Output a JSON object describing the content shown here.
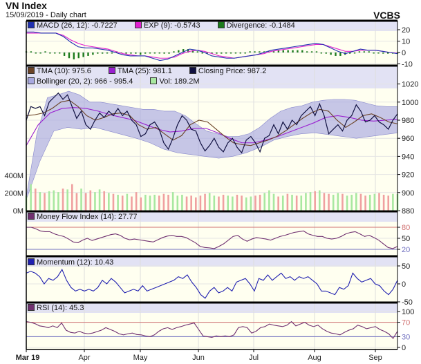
{
  "header": {
    "title": "VN Index",
    "subtitle": "15/09/2019 - Daily chart",
    "brand": "VCBS"
  },
  "colors": {
    "macd": "#2030b0",
    "exp": "#e020d0",
    "divergence": "#1c7a1c",
    "tma10": "#6b4326",
    "tma25": "#9a20d0",
    "close": "#101040",
    "bollinger": "#a8a8e0",
    "vol_up": "#a8e8a0",
    "vol_down": "#f0a0a0",
    "mfi": "#703070",
    "momentum": "#2020b0",
    "rsi": "#703070"
  },
  "chart_data": [
    {
      "type": "line",
      "name": "MACD",
      "legend": [
        {
          "label": "MACD (26, 12): -0.7227",
          "color": "#2030b0"
        },
        {
          "label": "EXP (9): -0.5743",
          "color": "#e020d0"
        },
        {
          "label": "Divergence: -0.1484",
          "color": "#1c7a1c"
        }
      ],
      "ylim": [
        -12,
        25
      ],
      "yticks": [
        "20",
        "10",
        "0",
        "-10"
      ],
      "ytick_values": [
        20,
        10,
        0,
        -10
      ],
      "macd": [
        18,
        18,
        17,
        17,
        17,
        14,
        9,
        5,
        4,
        4,
        3,
        2,
        0,
        -2,
        -3,
        -3,
        -3,
        -5,
        -7,
        -6,
        -3,
        0,
        3,
        2,
        0,
        -3,
        -4,
        -5,
        -5,
        -4,
        -3,
        -2,
        0,
        2,
        3,
        4,
        5,
        6,
        7,
        8,
        7,
        4,
        1,
        -1,
        1,
        3,
        2,
        2,
        1,
        0,
        -1
      ],
      "exp": [
        17,
        17,
        17,
        17,
        17,
        15,
        11,
        8,
        6,
        5,
        4,
        3,
        1,
        -1,
        -2,
        -3,
        -3,
        -4,
        -5,
        -5,
        -4,
        -1,
        1,
        2,
        1,
        -1,
        -3,
        -4,
        -5,
        -4,
        -3,
        -2,
        -1,
        1,
        2,
        3,
        4,
        5,
        6,
        7,
        7,
        5,
        3,
        1,
        1,
        2,
        2,
        2,
        1,
        0,
        -0.6
      ],
      "divergence": [
        1,
        1,
        0,
        0,
        1,
        0,
        0,
        0,
        -3,
        -5,
        -6,
        -5,
        -4,
        -3,
        -2,
        -1,
        -1,
        0,
        0,
        1,
        0,
        -1,
        -1,
        -1,
        -2,
        -1,
        0,
        0,
        0,
        -1,
        -1,
        1,
        2,
        3,
        3,
        2,
        1,
        0,
        -1,
        -1,
        -1,
        -1,
        0,
        0,
        0,
        0,
        0,
        1,
        1,
        1,
        1,
        1,
        1,
        2,
        2,
        2,
        2,
        2,
        2,
        1,
        1,
        1,
        0,
        -1,
        -2,
        -3,
        -3,
        -2,
        -1,
        0,
        1,
        1,
        1,
        0,
        0,
        -1,
        -1,
        -1,
        -1
      ]
    },
    {
      "type": "line",
      "name": "Price",
      "legend": [
        {
          "label": "TMA (10): 975.6",
          "color": "#6b4326"
        },
        {
          "label": "TMA (25): 981.1",
          "color": "#9a20d0"
        },
        {
          "label": "Closing Price: 987.2",
          "color": "#101040"
        },
        {
          "label": "Bollinger (20, 2): 966 - 995.4",
          "color": "#a8a8e0"
        },
        {
          "label": "Vol: 189.2M",
          "color": "#a8e8a0"
        }
      ],
      "ylim": [
        880,
        1030
      ],
      "yticks": [
        "1020",
        "1000",
        "980",
        "960",
        "940",
        "920",
        "900",
        "880"
      ],
      "ytick_values": [
        1020,
        1000,
        980,
        960,
        940,
        920,
        900,
        880
      ],
      "close": [
        980,
        995,
        993,
        995,
        985,
        1000,
        1005,
        1010,
        1003,
        1008,
        995,
        982,
        990,
        975,
        970,
        980,
        988,
        983,
        990,
        985,
        993,
        985,
        990,
        980,
        975,
        962,
        965,
        975,
        978,
        970,
        955,
        948,
        960,
        975,
        985,
        980,
        970,
        968,
        955,
        946,
        952,
        960,
        950,
        945,
        955,
        960,
        950,
        944,
        958,
        962,
        955,
        945,
        960,
        963,
        975,
        965,
        978,
        970,
        980,
        975,
        985,
        990,
        995,
        985,
        998,
        985,
        965,
        970,
        975,
        968,
        980,
        985,
        997,
        990,
        978,
        980,
        985,
        978,
        975,
        970,
        980,
        987
      ],
      "tma10": [
        985,
        986,
        988,
        993,
        1000,
        1002,
        995,
        985,
        980,
        983,
        987,
        988,
        985,
        975,
        970,
        972,
        965,
        958,
        963,
        975,
        980,
        978,
        970,
        962,
        955,
        953,
        952,
        955,
        958,
        962,
        968,
        975,
        982,
        988,
        992,
        990,
        980,
        972,
        978,
        985,
        987,
        983,
        978,
        976
      ],
      "tma25": [
        952,
        975,
        988,
        993,
        994,
        993,
        990,
        986,
        983,
        980,
        975,
        970,
        967,
        968,
        971,
        971,
        966,
        960,
        955,
        955,
        958,
        962,
        967,
        972,
        977,
        983,
        985,
        983,
        980,
        979,
        980,
        981
      ],
      "boll_upper": [
        895,
        965,
        1005,
        1008,
        1012,
        1008,
        1000,
        1000,
        998,
        996,
        994,
        992,
        992,
        990,
        990,
        985,
        976,
        968,
        965,
        962,
        962,
        965,
        972,
        982,
        990,
        994,
        996,
        1000,
        1002,
        1003,
        1003,
        1002,
        999,
        996,
        995,
        995
      ],
      "boll_lower": [
        892,
        935,
        968,
        972,
        970,
        972,
        968,
        964,
        960,
        955,
        948,
        944,
        942,
        940,
        938,
        940,
        944,
        950,
        958,
        962,
        965,
        966,
        964,
        962,
        960,
        962,
        964,
        966
      ],
      "volume_label_ticks": [
        "400M",
        "200M",
        "0M"
      ],
      "volume_tick_values": [
        400,
        200,
        0
      ],
      "volume_max": 600,
      "volume": [
        170,
        300,
        250,
        210,
        200,
        220,
        230,
        210,
        250,
        240,
        300,
        200,
        250,
        200,
        230,
        210,
        240,
        220,
        200,
        190,
        180,
        170,
        190,
        160,
        210,
        150,
        180,
        170,
        180,
        170,
        190,
        180,
        210,
        170,
        180,
        160,
        170,
        150,
        170,
        190,
        200,
        170,
        160,
        180,
        170,
        160,
        180,
        170,
        150,
        160,
        170,
        180,
        200,
        230,
        190,
        160,
        170,
        190,
        180,
        170,
        170,
        200,
        210,
        220,
        230,
        200,
        190,
        180,
        200,
        190,
        170,
        180,
        200,
        190,
        170,
        180,
        190,
        200,
        180,
        170,
        190,
        189
      ]
    },
    {
      "type": "line",
      "name": "Money Flow Index",
      "legend": [
        {
          "label": "Money Flow Index (14): 27.77",
          "color": "#703070"
        }
      ],
      "ylim": [
        0,
        100
      ],
      "yticks": [
        "80",
        "50",
        "20"
      ],
      "ytick_values": [
        80,
        50,
        20
      ],
      "values": [
        80,
        80,
        76,
        70,
        68,
        68,
        62,
        58,
        55,
        48,
        40,
        38,
        45,
        50,
        44,
        48,
        52,
        56,
        60,
        62,
        58,
        50,
        46,
        48,
        46,
        44,
        42,
        40,
        46,
        52,
        56,
        58,
        55,
        55,
        52,
        45,
        38,
        28,
        25,
        24,
        22,
        28,
        35,
        45,
        55,
        58,
        48,
        42,
        48,
        52,
        50,
        48,
        45,
        50,
        55,
        58,
        62,
        66,
        68,
        70,
        62,
        58,
        55,
        55,
        50,
        48,
        50,
        55,
        62,
        66,
        68,
        62,
        55,
        58,
        52,
        45,
        35,
        25,
        22,
        28
      ]
    },
    {
      "type": "line",
      "name": "Momentum",
      "legend": [
        {
          "label": "Momentum (12): 10.43",
          "color": "#2020b0"
        }
      ],
      "ylim": [
        -50,
        80
      ],
      "yticks": [
        "50",
        "0",
        "-50"
      ],
      "ytick_values": [
        50,
        0,
        -50
      ],
      "values": [
        30,
        35,
        30,
        20,
        0,
        15,
        10,
        20,
        40,
        10,
        -10,
        -20,
        -15,
        -20,
        -15,
        -20,
        -10,
        10,
        0,
        15,
        5,
        -10,
        -25,
        -20,
        -15,
        -20,
        -5,
        -20,
        -15,
        -10,
        -5,
        0,
        5,
        10,
        20,
        15,
        25,
        5,
        -10,
        -30,
        -40,
        -20,
        -10,
        -25,
        -20,
        -10,
        -20,
        5,
        10,
        15,
        0,
        -20,
        15,
        10,
        25,
        10,
        20,
        30,
        15,
        20,
        10,
        20,
        15,
        20,
        10,
        0,
        -20,
        -20,
        -25,
        -30,
        -10,
        -15,
        -5,
        30,
        15,
        5,
        10,
        15,
        0,
        -5,
        -20,
        -30,
        -15,
        10
      ]
    },
    {
      "type": "line",
      "name": "RSI",
      "legend": [
        {
          "label": "RSI (14): 45.3",
          "color": "#703070"
        }
      ],
      "ylim": [
        0,
        100
      ],
      "yticks": [
        "100",
        "70",
        "30",
        "0"
      ],
      "ytick_values": [
        100,
        70,
        30,
        0
      ],
      "values": [
        72,
        70,
        66,
        60,
        58,
        55,
        60,
        55,
        68,
        48,
        42,
        40,
        45,
        40,
        38,
        40,
        44,
        48,
        55,
        50,
        45,
        38,
        35,
        38,
        40,
        36,
        35,
        32,
        30,
        35,
        45,
        52,
        55,
        50,
        55,
        58,
        62,
        65,
        68,
        50,
        32,
        30,
        28,
        32,
        30,
        32,
        30,
        35,
        55,
        58,
        55,
        40,
        45,
        55,
        58,
        65,
        62,
        60,
        58,
        62,
        72,
        60,
        65,
        70,
        62,
        58,
        62,
        52,
        45,
        40,
        38,
        35,
        42,
        48,
        52,
        62,
        58,
        52,
        55,
        58,
        50,
        45,
        38,
        25,
        45
      ]
    },
    {
      "type": "axis",
      "name": "x-axis",
      "labels": [
        "Mar 19",
        "Apr",
        "May",
        "Jun",
        "Jul",
        "Aug",
        "Sep"
      ]
    }
  ]
}
